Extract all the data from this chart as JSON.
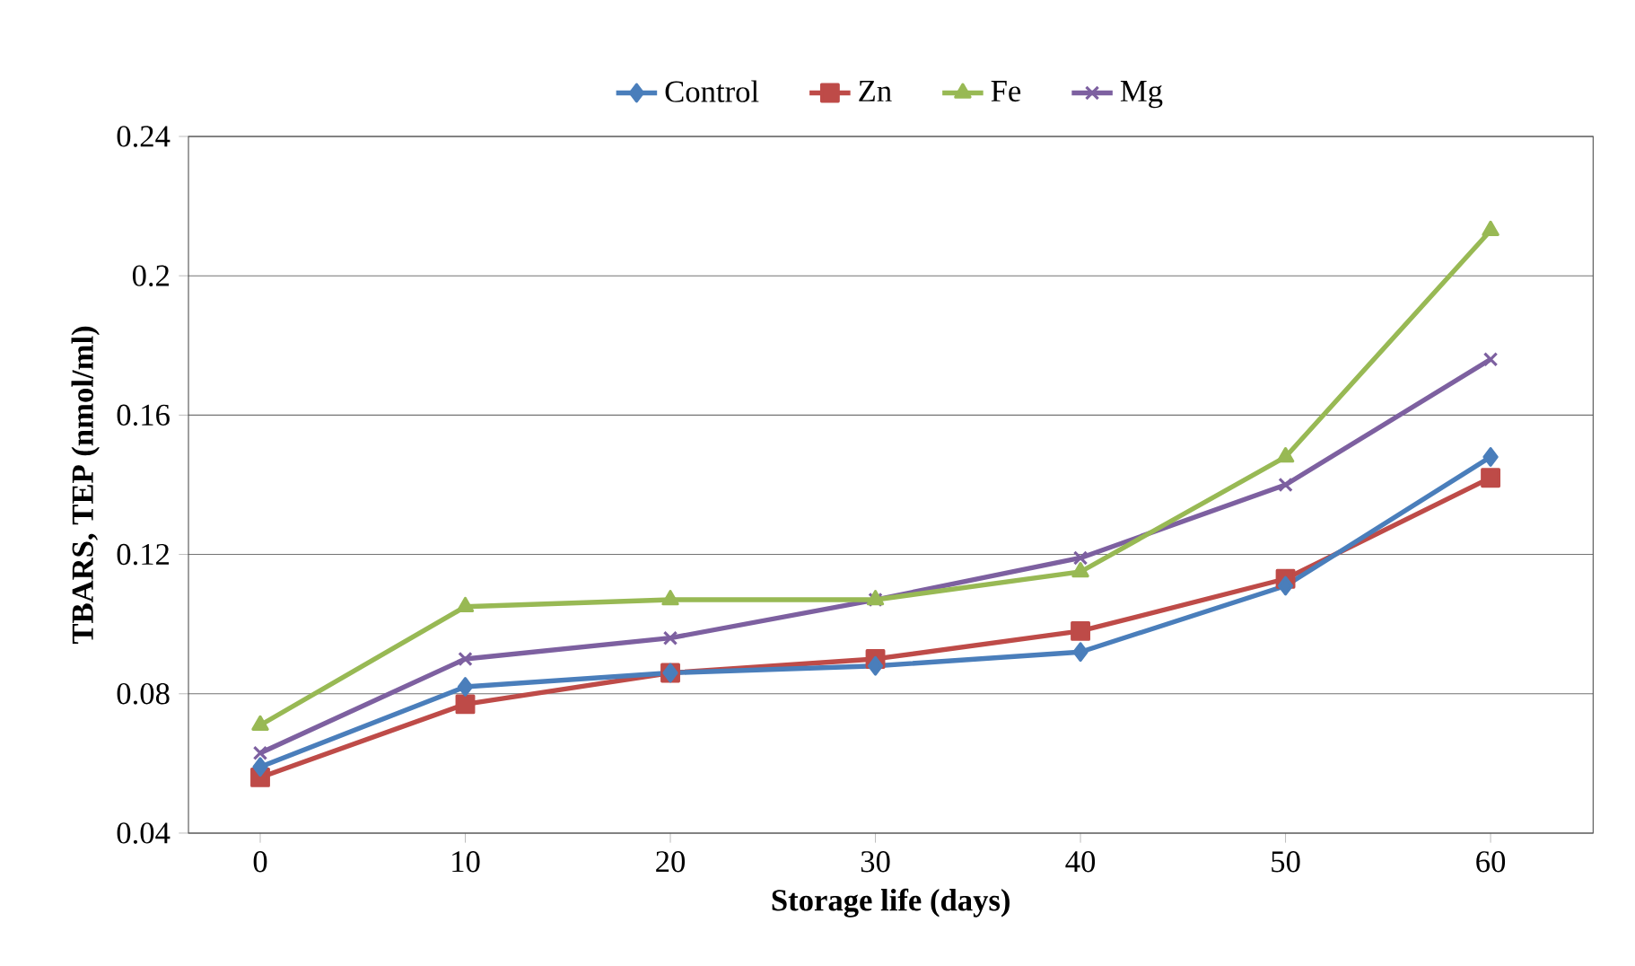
{
  "chart_data": {
    "type": "line",
    "xlabel": "Storage life (days)",
    "ylabel": "TBARS,  TEP (nmol/ml)",
    "x": [
      0,
      10,
      20,
      30,
      40,
      50,
      60
    ],
    "series": [
      {
        "name": "Control",
        "color": "#4a7ebb",
        "marker": "diamond",
        "values": [
          0.059,
          0.082,
          0.086,
          0.088,
          0.092,
          0.111,
          0.148
        ]
      },
      {
        "name": "Zn",
        "color": "#be4b48",
        "marker": "square",
        "values": [
          0.056,
          0.077,
          0.086,
          0.09,
          0.098,
          0.113,
          0.142
        ]
      },
      {
        "name": "Fe",
        "color": "#98b954",
        "marker": "triangle",
        "values": [
          0.071,
          0.105,
          0.107,
          0.107,
          0.115,
          0.148,
          0.213
        ]
      },
      {
        "name": "Mg",
        "color": "#7d60a0",
        "marker": "cross",
        "values": [
          0.063,
          0.09,
          0.096,
          0.107,
          0.119,
          0.14,
          0.176
        ]
      }
    ],
    "xlim": [
      -3.5,
      65
    ],
    "xticks": [
      0,
      10,
      20,
      30,
      40,
      50,
      60
    ],
    "ylim": [
      0.04,
      0.24
    ],
    "yticks": [
      0.04,
      0.08,
      0.12,
      0.16,
      0.2,
      0.24
    ],
    "grid": "y",
    "legend": "top",
    "line_style": "solid"
  }
}
